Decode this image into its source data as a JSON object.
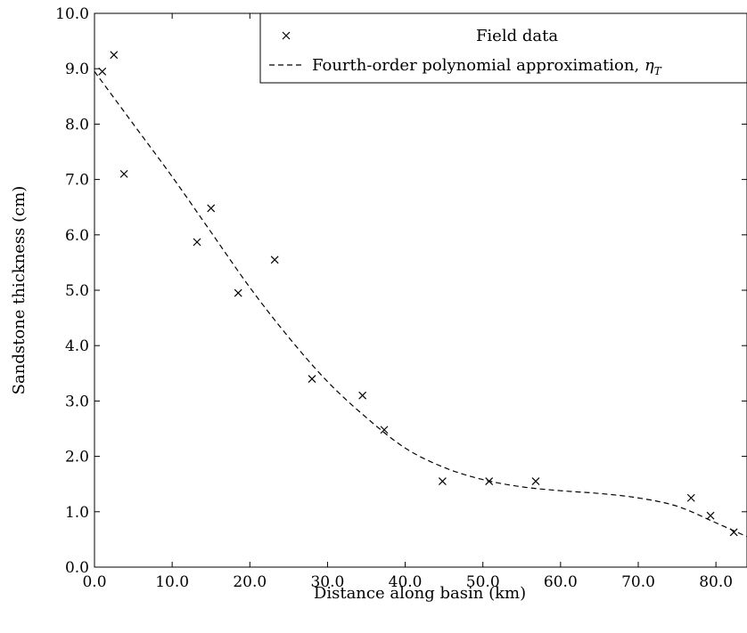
{
  "chart_data": {
    "type": "scatter",
    "xlabel": "Distance along basin (km)",
    "ylabel": "Sandstone thickness (cm)",
    "xlim": [
      0,
      84
    ],
    "ylim": [
      0,
      10
    ],
    "x_ticks": [
      "0.0",
      "10.0",
      "20.0",
      "30.0",
      "40.0",
      "50.0",
      "60.0",
      "70.0",
      "80.0"
    ],
    "y_ticks": [
      "0.0",
      "1.0",
      "2.0",
      "3.0",
      "4.0",
      "5.0",
      "6.0",
      "7.0",
      "8.0",
      "9.0",
      "10.0"
    ],
    "grid": false,
    "legend_position": "top-right",
    "series": [
      {
        "name": "Field data",
        "type": "scatter",
        "marker": "x",
        "x": [
          1.0,
          2.5,
          3.8,
          13.2,
          15.0,
          18.5,
          23.2,
          28.0,
          34.5,
          37.3,
          44.8,
          50.8,
          56.8,
          76.8,
          79.3,
          82.3
        ],
        "y": [
          8.95,
          9.25,
          7.1,
          5.87,
          6.48,
          4.95,
          5.55,
          3.4,
          3.1,
          2.48,
          1.55,
          1.55,
          1.55,
          1.25,
          0.93,
          0.63
        ]
      },
      {
        "name": "Fourth-order polynomial approximation, ηT",
        "type": "line",
        "style": "dashed",
        "x": [
          0,
          5,
          10,
          15,
          20,
          25,
          30,
          35,
          40,
          45,
          50,
          55,
          60,
          65,
          70,
          75,
          80,
          84
        ],
        "y": [
          8.95,
          8.0,
          7.05,
          6.05,
          5.05,
          4.15,
          3.35,
          2.7,
          2.15,
          1.8,
          1.58,
          1.45,
          1.38,
          1.33,
          1.25,
          1.1,
          0.8,
          0.55
        ]
      }
    ],
    "legend": {
      "entries": [
        "Field data",
        "Fourth-order polynomial approximation, "
      ],
      "math_symbol": "η",
      "math_subscript": "T"
    }
  }
}
